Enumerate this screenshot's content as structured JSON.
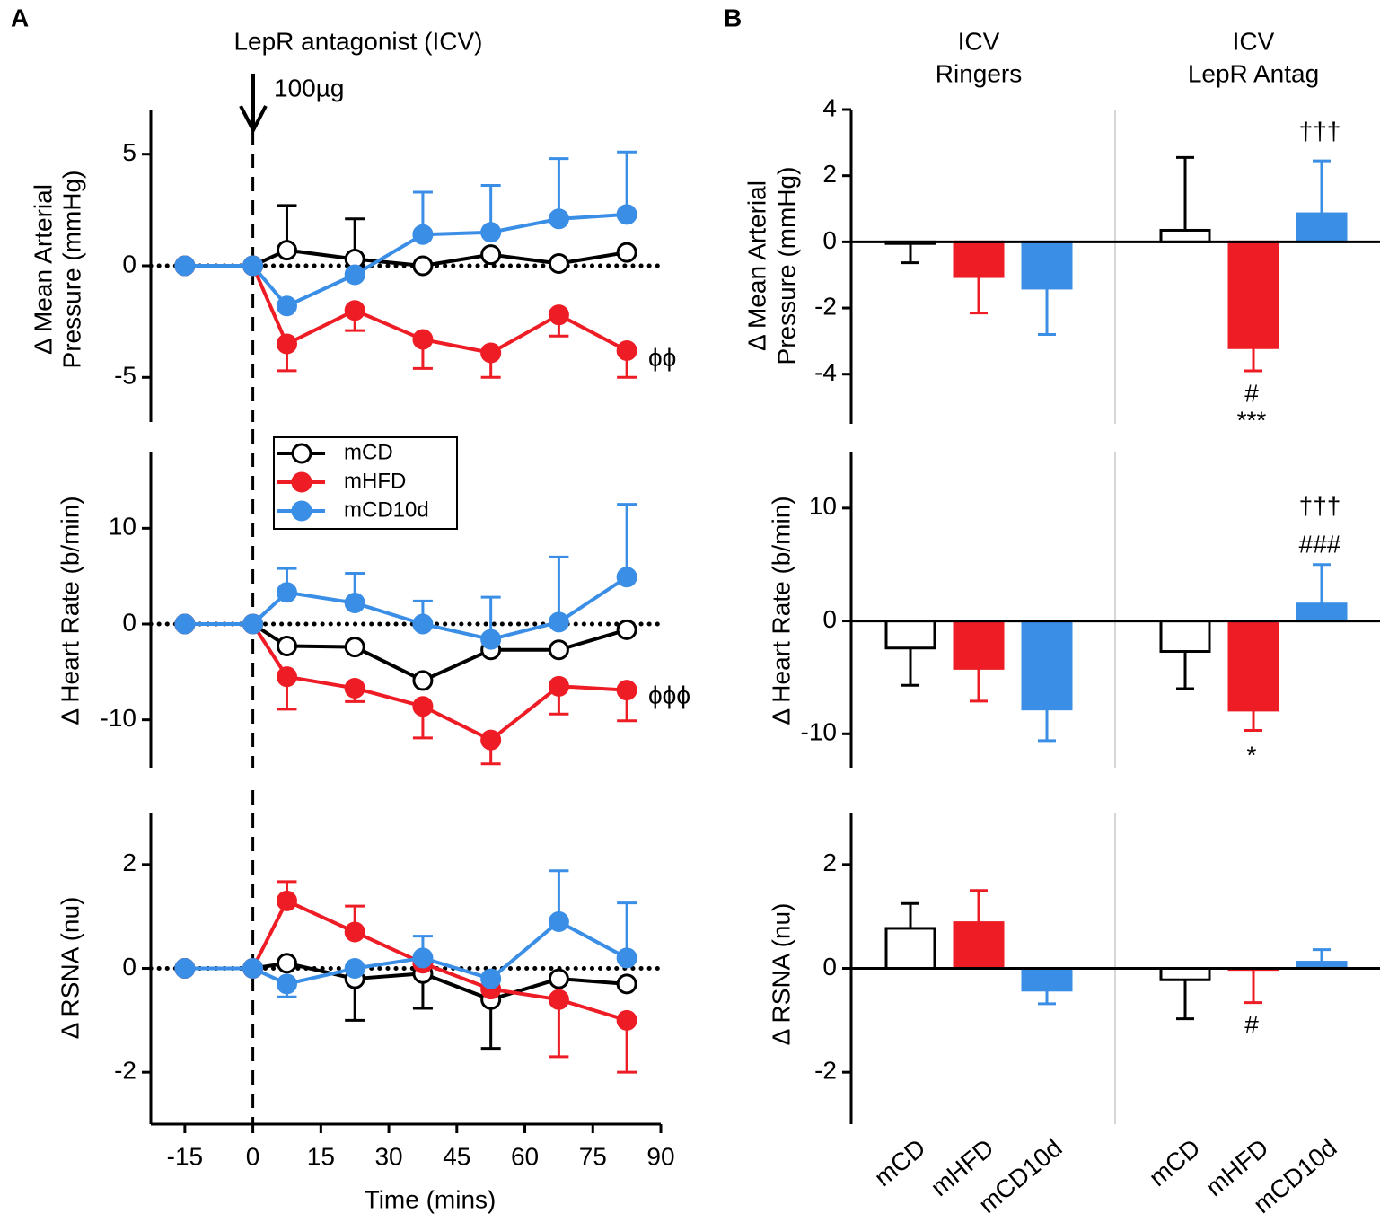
{
  "panel_labels": [
    "A",
    "B"
  ],
  "chart_data": [
    {
      "type": "line",
      "ylabel": [
        "Δ Mean Arterial",
        "Pressure (mmHg)"
      ],
      "x": [
        -15,
        0,
        7.5,
        22.5,
        37.5,
        52.5,
        67.5,
        82.5
      ],
      "xlim": [
        -22.5,
        90
      ],
      "ylim": [
        -7,
        7
      ],
      "yticks": [
        -5,
        0,
        5
      ],
      "series": [
        {
          "color": "#000000",
          "fill": "#ffffff",
          "values": [
            0,
            0,
            0.7,
            0.3,
            0,
            0.5,
            0.1,
            0.6
          ],
          "errors_up": [
            null,
            null,
            2.0,
            1.8,
            null,
            null,
            null,
            null
          ]
        },
        {
          "color": "#ee1c25",
          "fill": "#ee1c25",
          "values": [
            0,
            0,
            -3.5,
            -2.0,
            -3.3,
            -3.9,
            -2.2,
            -3.8
          ],
          "errors_down": [
            null,
            null,
            1.2,
            0.9,
            1.3,
            1.1,
            0.95,
            1.2
          ]
        },
        {
          "color": "#3a8ee6",
          "fill": "#3a8ee6",
          "values": [
            0,
            0,
            -1.8,
            -0.4,
            1.4,
            1.5,
            2.1,
            2.3
          ],
          "errors_up": [
            null,
            null,
            null,
            null,
            1.9,
            2.1,
            2.7,
            2.8
          ]
        }
      ],
      "annotations": [
        "LepR antagonist (ICV)",
        "100µg",
        "ϕϕ"
      ]
    },
    {
      "type": "line",
      "ylabel": "Δ Heart Rate (b/min)",
      "x": [
        -15,
        0,
        7.5,
        22.5,
        37.5,
        52.5,
        67.5,
        82.5
      ],
      "xlim": [
        -22.5,
        90
      ],
      "ylim": [
        -15,
        18
      ],
      "yticks": [
        -10,
        0,
        10
      ],
      "legend": "upper left",
      "series": [
        {
          "name": "mCD",
          "color": "#000000",
          "fill": "#ffffff",
          "values": [
            0,
            0,
            -2.3,
            -2.4,
            -5.9,
            -2.7,
            -2.7,
            -0.6
          ]
        },
        {
          "name": "mHFD",
          "color": "#ee1c25",
          "fill": "#ee1c25",
          "values": [
            0,
            0,
            -5.5,
            -6.7,
            -8.6,
            -12.1,
            -6.5,
            -6.9
          ],
          "errors_down": [
            null,
            null,
            3.4,
            1.4,
            3.3,
            2.5,
            2.9,
            3.2
          ]
        },
        {
          "name": "mCD10d",
          "color": "#3a8ee6",
          "fill": "#3a8ee6",
          "values": [
            0,
            0,
            3.3,
            2.2,
            0,
            -1.6,
            0.2,
            4.9
          ],
          "errors_up": [
            null,
            null,
            2.5,
            3.1,
            2.4,
            4.4,
            6.8,
            7.6
          ]
        }
      ],
      "annotations": [
        "ϕϕϕ"
      ]
    },
    {
      "type": "line",
      "ylabel": "Δ RSNA (nu)",
      "xlabel": "Time (mins)",
      "x": [
        -15,
        0,
        7.5,
        22.5,
        37.5,
        52.5,
        67.5,
        82.5
      ],
      "xlim": [
        -22.5,
        90
      ],
      "xticks": [
        -15,
        0,
        15,
        30,
        45,
        60,
        75,
        90
      ],
      "ylim": [
        -3,
        3
      ],
      "yticks": [
        -2,
        0,
        2
      ],
      "series": [
        {
          "color": "#000000",
          "fill": "#ffffff",
          "values": [
            0,
            0,
            0.1,
            -0.2,
            -0.1,
            -0.6,
            -0.2,
            -0.3
          ],
          "errors_down": [
            null,
            null,
            null,
            0.8,
            0.67,
            0.94,
            null,
            null
          ]
        },
        {
          "color": "#ee1c25",
          "fill": "#ee1c25",
          "values": [
            0,
            0,
            1.3,
            0.7,
            0.1,
            -0.4,
            -0.6,
            -1.0
          ],
          "errors_up": [
            null,
            null,
            0.37,
            0.5,
            null,
            null,
            null,
            null
          ],
          "errors_down": [
            null,
            null,
            null,
            null,
            null,
            null,
            1.1,
            1.0
          ]
        },
        {
          "color": "#3a8ee6",
          "fill": "#3a8ee6",
          "values": [
            0,
            0,
            -0.3,
            0,
            0.2,
            -0.2,
            0.9,
            0.2
          ],
          "errors_up": [
            null,
            null,
            null,
            null,
            0.42,
            null,
            0.98,
            1.06
          ],
          "errors_down": [
            null,
            null,
            0.25,
            null,
            null,
            null,
            null,
            null
          ]
        }
      ]
    },
    {
      "type": "bar",
      "categories": [
        [
          "ICV",
          "Ringers"
        ],
        [
          "ICV",
          "LepR Antag"
        ]
      ],
      "ylabel": [
        "Δ Mean Arterial",
        "Pressure (mmHg)"
      ],
      "ylim": [
        -5.5,
        4
      ],
      "yticks": [
        -4,
        -2,
        0,
        2,
        4
      ],
      "series": [
        {
          "color": "#000000",
          "fill": "#ffffff",
          "values": [
            -0.05,
            0.35
          ],
          "errors": [
            0.58,
            2.2
          ]
        },
        {
          "color": "#ee1c25",
          "fill": "#ee1c25",
          "values": [
            -1.05,
            -3.2
          ],
          "errors": [
            1.1,
            0.7
          ]
        },
        {
          "color": "#3a8ee6",
          "fill": "#3a8ee6",
          "values": [
            -1.4,
            0.85
          ],
          "errors": [
            1.4,
            1.6
          ]
        }
      ],
      "annotations": [
        "†††",
        "#",
        "***"
      ]
    },
    {
      "type": "bar",
      "ylabel": "Δ Heart Rate (b/min)",
      "ylim": [
        -13,
        15
      ],
      "yticks": [
        -10,
        0,
        10
      ],
      "series": [
        {
          "color": "#000000",
          "fill": "#ffffff",
          "values": [
            -2.4,
            -2.7
          ],
          "errors": [
            3.3,
            3.3
          ]
        },
        {
          "color": "#ee1c25",
          "fill": "#ee1c25",
          "values": [
            -4.2,
            -7.9
          ],
          "errors": [
            2.9,
            1.8
          ]
        },
        {
          "color": "#3a8ee6",
          "fill": "#3a8ee6",
          "values": [
            -7.8,
            1.5
          ],
          "errors": [
            2.8,
            3.5
          ]
        }
      ],
      "annotations": [
        "†††",
        "###",
        "*"
      ]
    },
    {
      "type": "bar",
      "ylabel": "Δ RSNA (nu)",
      "ylim": [
        -3,
        3
      ],
      "yticks": [
        -2,
        0,
        2
      ],
      "series": [
        {
          "name": "mCD",
          "color": "#000000",
          "fill": "#ffffff",
          "values": [
            0.77,
            -0.22
          ],
          "errors": [
            0.48,
            0.75
          ]
        },
        {
          "name": "mHFD",
          "color": "#ee1c25",
          "fill": "#ee1c25",
          "values": [
            0.88,
            -0.02
          ],
          "errors": [
            0.62,
            0.64
          ]
        },
        {
          "name": "mCD10d",
          "color": "#3a8ee6",
          "fill": "#3a8ee6",
          "values": [
            -0.42,
            0.12
          ],
          "errors": [
            0.26,
            0.24
          ]
        }
      ],
      "annotations": [
        "#"
      ]
    }
  ]
}
